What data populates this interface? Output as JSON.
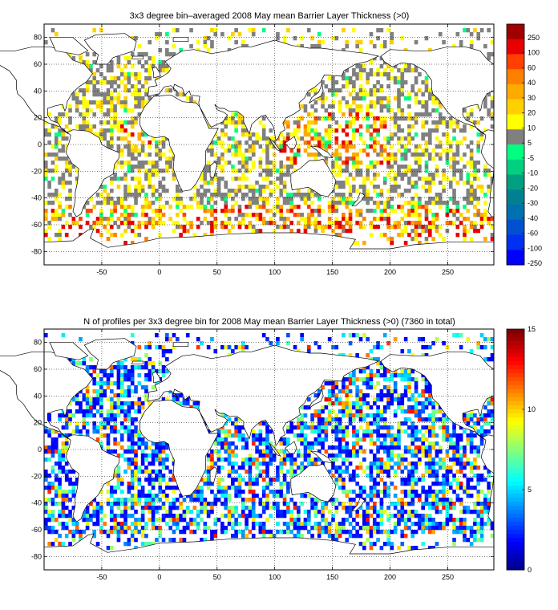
{
  "top_panel": {
    "title": "3x3 degree bin–averaged 2008 May mean Barrier Layer Thickness (>0)",
    "colorbar_labels": [
      "250",
      "100",
      "60",
      "40",
      "30",
      "20",
      "10",
      "5",
      "-5",
      "-10",
      "-20",
      "-30",
      "-40",
      "-60",
      "-100",
      "-250"
    ],
    "colorbar_colors": [
      "#a00000",
      "#e80000",
      "#ff4000",
      "#ff8000",
      "#ffaa00",
      "#ffd000",
      "#ffff00",
      "#808080",
      "#00ff80",
      "#00d080",
      "#00a080",
      "#008090",
      "#0070b0",
      "#0050d0",
      "#0030f0",
      "#0000ff"
    ]
  },
  "bottom_panel": {
    "title": "N of profiles per 3x3 degree bin for 2008 May mean Barrier Layer Thickness (>0) (7360 in total)",
    "colorbar_labels": [
      "15",
      "10",
      "5",
      "0"
    ]
  },
  "axes": {
    "x_ticks": [
      "-50",
      "0",
      "50",
      "100",
      "150",
      "200",
      "250"
    ],
    "y_ticks": [
      "80",
      "60",
      "40",
      "20",
      "0",
      "-20",
      "-40",
      "-60",
      "-80"
    ]
  },
  "chart_data": [
    {
      "type": "heatmap",
      "title": "3x3 degree bin–averaged 2008 May mean Barrier Layer Thickness (>0)",
      "xlabel": "",
      "ylabel": "",
      "xlim": [
        -100,
        290
      ],
      "ylim": [
        -90,
        90
      ],
      "grid": true,
      "bin_size_deg": 3,
      "colorbar_levels": [
        -250,
        -100,
        -60,
        -40,
        -30,
        -20,
        -10,
        -5,
        5,
        10,
        20,
        30,
        40,
        60,
        100,
        250
      ]
    },
    {
      "type": "heatmap",
      "title": "N of profiles per 3x3 degree bin for 2008 May mean Barrier Layer Thickness (>0) (7360 in total)",
      "xlabel": "",
      "ylabel": "",
      "xlim": [
        -100,
        290
      ],
      "ylim": [
        -90,
        90
      ],
      "grid": true,
      "bin_size_deg": 3,
      "total_profiles": 7360,
      "colorbar_range": [
        0,
        15
      ]
    }
  ]
}
